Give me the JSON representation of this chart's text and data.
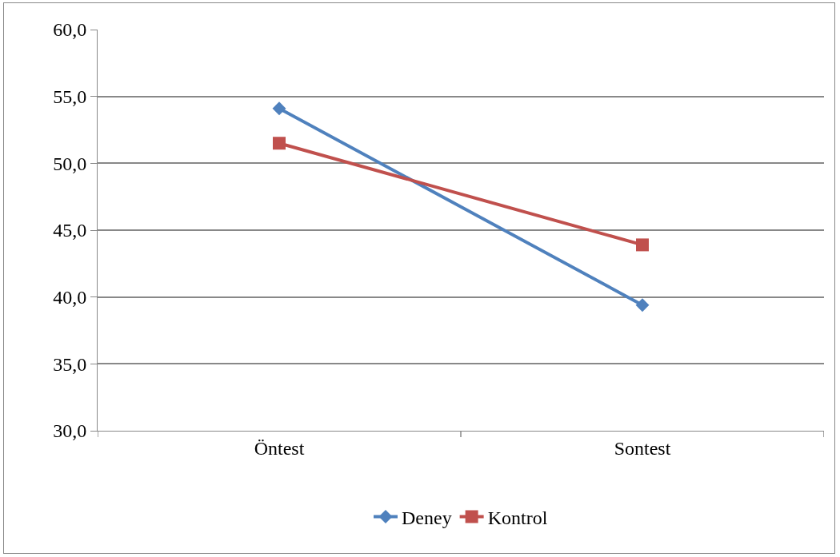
{
  "chart_data": {
    "type": "line",
    "categories": [
      "Öntest",
      "Sontest"
    ],
    "series": [
      {
        "name": "Deney",
        "color": "#4f81bd",
        "values": [
          54.1,
          39.4
        ],
        "marker": "diamond"
      },
      {
        "name": "Kontrol",
        "color": "#c0504d",
        "values": [
          51.5,
          43.9
        ],
        "marker": "square"
      }
    ],
    "ylim": [
      30,
      60
    ],
    "yticks": [
      {
        "value": 30,
        "label": "30,0"
      },
      {
        "value": 35,
        "label": "35,0"
      },
      {
        "value": 40,
        "label": "40,0"
      },
      {
        "value": 45,
        "label": "45,0"
      },
      {
        "value": 50,
        "label": "50,0"
      },
      {
        "value": 55,
        "label": "55,0"
      },
      {
        "value": 60,
        "label": "60,0"
      }
    ],
    "grid": "y",
    "legend": "bottom",
    "line_style": "solid"
  }
}
